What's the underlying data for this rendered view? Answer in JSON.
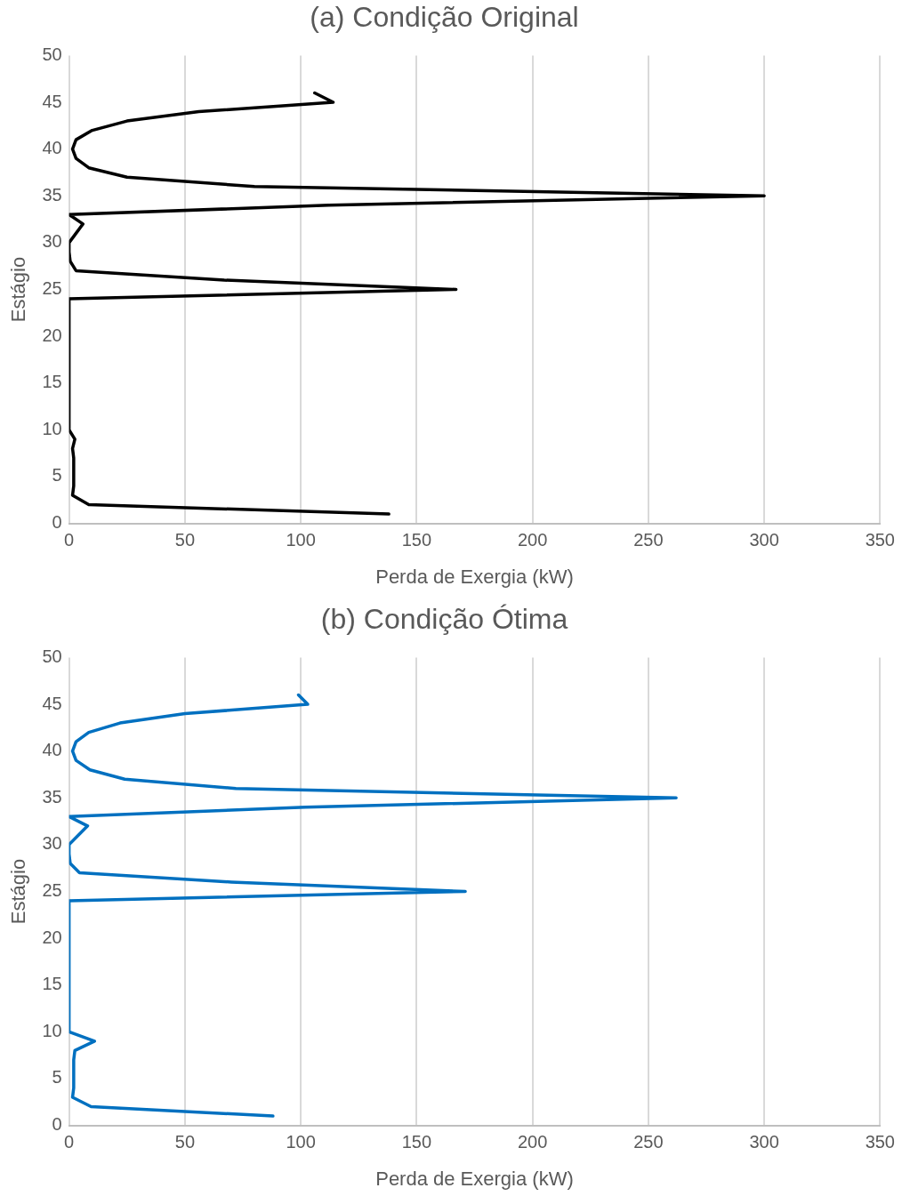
{
  "chart_data": [
    {
      "type": "line",
      "title": "(a) Condição Original",
      "xlabel": "Perda de Exergia (kW)",
      "ylabel": "Estágio",
      "grid": "x",
      "marker": "none",
      "series": [
        {
          "color": "#000000",
          "x": [
            138,
            8.5,
            1.5,
            2,
            2,
            2,
            2,
            1.5,
            2.5,
            0,
            0,
            0,
            0,
            0,
            0,
            0,
            0,
            0,
            0,
            0,
            0,
            0,
            0,
            0,
            167,
            67,
            3,
            0.5,
            0,
            0,
            3,
            6,
            0,
            112,
            300,
            80,
            25,
            8.5,
            3,
            1.5,
            3,
            10,
            25,
            56,
            114,
            106
          ],
          "values": [
            1,
            2,
            3,
            4,
            5,
            6,
            7,
            8,
            9,
            10,
            11,
            12,
            13,
            14,
            15,
            16,
            17,
            18,
            19,
            20,
            21,
            22,
            23,
            24,
            25,
            26,
            27,
            28,
            29,
            30,
            31,
            32,
            33,
            34,
            35,
            36,
            37,
            38,
            39,
            40,
            41,
            42,
            43,
            44,
            45,
            46
          ]
        }
      ],
      "xlim": [
        0,
        350
      ],
      "xticks": [
        0,
        50,
        100,
        150,
        200,
        250,
        300,
        350
      ],
      "ylim": [
        0,
        50
      ],
      "yticks": [
        0,
        5,
        10,
        15,
        20,
        25,
        30,
        35,
        40,
        45,
        50
      ]
    },
    {
      "type": "line",
      "title": "(b) Condição Ótima",
      "xlabel": "Perda de Exergia (kW)",
      "ylabel": "Estágio",
      "grid": "x",
      "marker": "none",
      "series": [
        {
          "color": "#0070c0",
          "x": [
            88,
            9.5,
            1.5,
            2,
            2,
            2,
            2,
            2.5,
            11,
            0,
            0,
            0,
            0,
            0,
            0,
            0,
            0,
            0,
            0,
            0,
            0,
            0,
            0,
            0,
            171,
            70,
            4.5,
            0.5,
            0,
            0,
            4,
            8,
            0,
            102,
            262,
            72,
            24,
            9,
            3,
            1.5,
            3,
            8.5,
            22,
            50,
            103,
            99
          ],
          "values": [
            1,
            2,
            3,
            4,
            5,
            6,
            7,
            8,
            9,
            10,
            11,
            12,
            13,
            14,
            15,
            16,
            17,
            18,
            19,
            20,
            21,
            22,
            23,
            24,
            25,
            26,
            27,
            28,
            29,
            30,
            31,
            32,
            33,
            34,
            35,
            36,
            37,
            38,
            39,
            40,
            41,
            42,
            43,
            44,
            45,
            46
          ]
        }
      ],
      "xlim": [
        0,
        350
      ],
      "xticks": [
        0,
        50,
        100,
        150,
        200,
        250,
        300,
        350
      ],
      "ylim": [
        0,
        50
      ],
      "yticks": [
        0,
        5,
        10,
        15,
        20,
        25,
        30,
        35,
        40,
        45,
        50
      ]
    }
  ]
}
